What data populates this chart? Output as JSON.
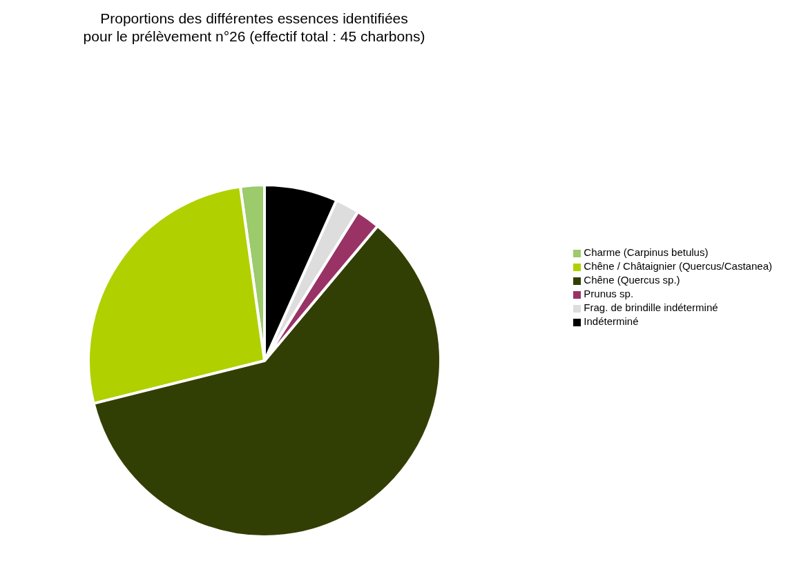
{
  "chart_data": {
    "type": "pie",
    "title": "Proportions des différentes essences identifiées\npour le prélèvement n°26 (effectif total : 45 charbons)",
    "categories": [
      "Charme (Carpinus betulus)",
      "Chêne / Châtaignier (Quercus/Castanea)",
      "Chêne (Quercus sp.)",
      "Prunus sp.",
      "Frag. de brindille indéterminé",
      "Indéterminé"
    ],
    "values": [
      2.2,
      26.7,
      60.0,
      2.2,
      2.2,
      6.7
    ],
    "colors": [
      "#9bcb6b",
      "#b0d000",
      "#323f04",
      "#993366",
      "#dddddd",
      "#000000"
    ],
    "legend": "right"
  }
}
